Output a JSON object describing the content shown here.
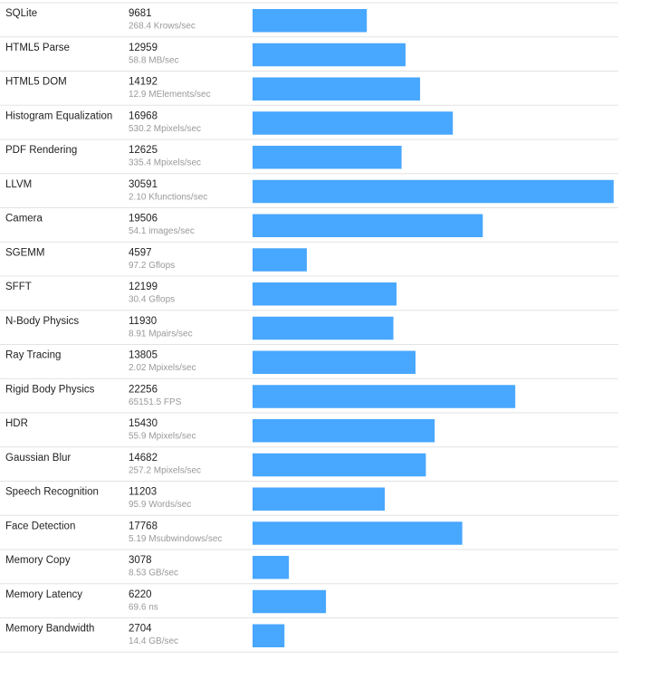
{
  "chart_data": {
    "type": "bar",
    "orientation": "horizontal",
    "color": "#48a7fe",
    "categories": [
      "SQLite",
      "HTML5 Parse",
      "HTML5 DOM",
      "Histogram Equalization",
      "PDF Rendering",
      "LLVM",
      "Camera",
      "SGEMM",
      "SFFT",
      "N-Body Physics",
      "Ray Tracing",
      "Rigid Body Physics",
      "HDR",
      "Gaussian Blur",
      "Speech Recognition",
      "Face Detection",
      "Memory Copy",
      "Memory Latency",
      "Memory Bandwidth"
    ],
    "values": [
      9681,
      12959,
      14192,
      16968,
      12625,
      30591,
      19506,
      4597,
      12199,
      11930,
      13805,
      22256,
      15430,
      14682,
      11203,
      17768,
      3078,
      6220,
      2704
    ],
    "rates": [
      "268.4 Krows/sec",
      "58.8 MB/sec",
      "12.9 MElements/sec",
      "530.2 Mpixels/sec",
      "335.4 Mpixels/sec",
      "2.10 Kfunctions/sec",
      "54.1 images/sec",
      "97.2 Gflops",
      "30.4 Gflops",
      "8.91 Mpairs/sec",
      "2.02 Mpixels/sec",
      "65151.5 FPS",
      "55.9 Mpixels/sec",
      "257.2 Mpixels/sec",
      "95.9 Words/sec",
      "5.19 Msubwindows/sec",
      "8.53 GB/sec",
      "69.6 ns",
      "14.4 GB/sec"
    ],
    "xlim": [
      0,
      30600
    ]
  }
}
